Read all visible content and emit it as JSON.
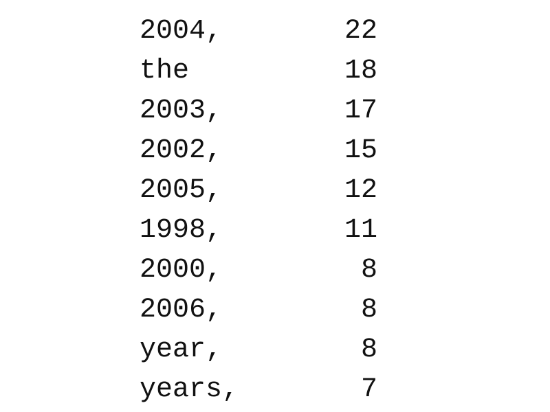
{
  "rows": [
    {
      "word": "2004,",
      "count": "22"
    },
    {
      "word": "the",
      "count": "18"
    },
    {
      "word": "2003,",
      "count": "17"
    },
    {
      "word": "2002,",
      "count": "15"
    },
    {
      "word": "2005,",
      "count": "12"
    },
    {
      "word": "1998,",
      "count": "11"
    },
    {
      "word": "2000,",
      "count": "8"
    },
    {
      "word": "2006,",
      "count": "8"
    },
    {
      "word": "year,",
      "count": "8"
    },
    {
      "word": "years,",
      "count": "7"
    }
  ]
}
